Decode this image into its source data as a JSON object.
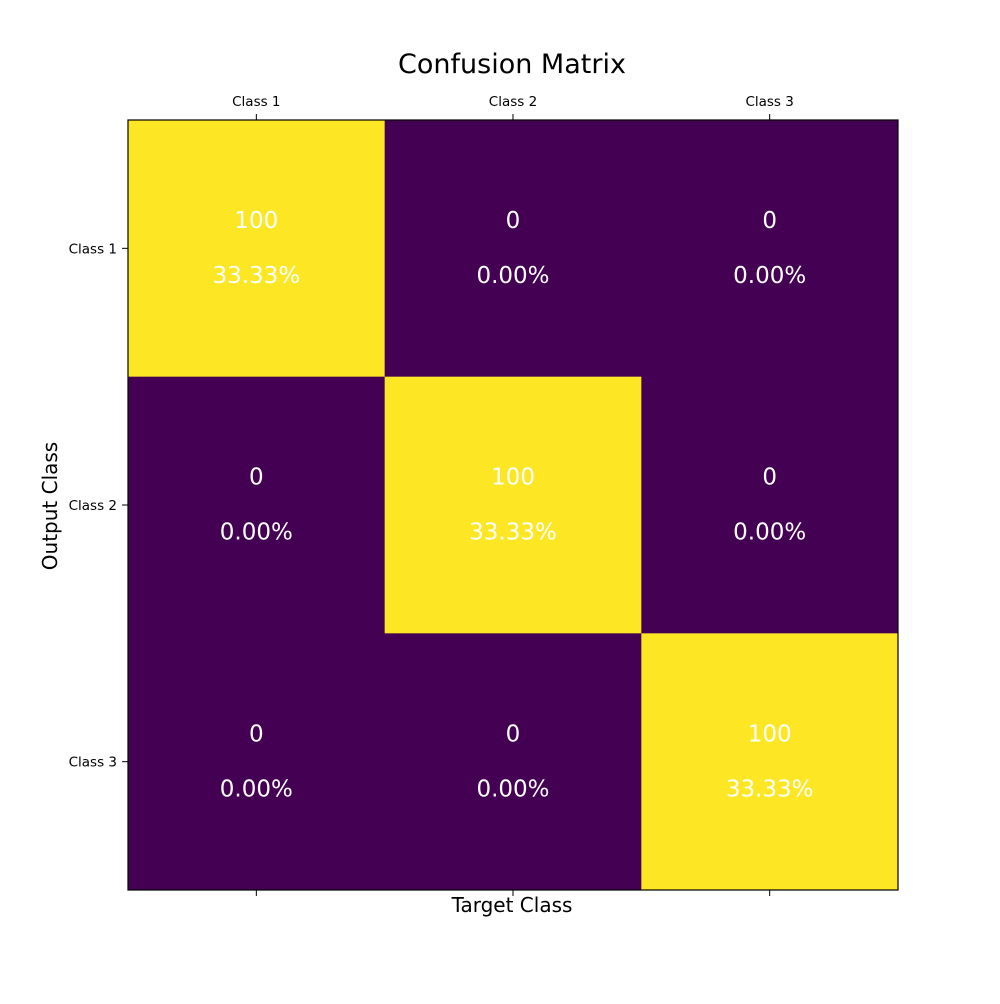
{
  "chart_data": {
    "type": "heatmap",
    "title": "Confusion Matrix",
    "xlabel": "Target Class",
    "ylabel": "Output Class",
    "x_categories": [
      "Class 1",
      "Class 2",
      "Class 3"
    ],
    "y_categories": [
      "Class 1",
      "Class 2",
      "Class 3"
    ],
    "x_tick_position": "top",
    "values": [
      [
        100,
        0,
        0
      ],
      [
        0,
        100,
        0
      ],
      [
        0,
        0,
        100
      ]
    ],
    "percentages": [
      [
        "33.33%",
        "0.00%",
        "0.00%"
      ],
      [
        "0.00%",
        "33.33%",
        "0.00%"
      ],
      [
        "0.00%",
        "0.00%",
        "33.33%"
      ]
    ],
    "colormap": "viridis",
    "colors": {
      "low": "#440154",
      "high": "#fde725",
      "cell_text": "#ffffff"
    },
    "grid": false,
    "legend": "none"
  }
}
